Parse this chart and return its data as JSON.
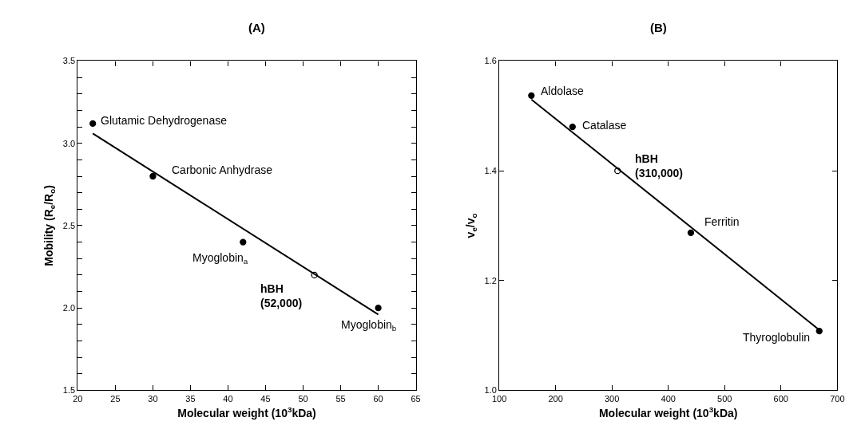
{
  "chart_data": [
    {
      "type": "scatter",
      "title": "(A)",
      "xlabel": "Molecular weight (10$^{3}$kDa)",
      "ylabel": "Mobility (R$_{e}$/R$_{o}$)",
      "xlim": [
        20,
        65
      ],
      "xticks": [
        20,
        25,
        30,
        35,
        40,
        45,
        50,
        55,
        60,
        65
      ],
      "ylim": [
        1.5,
        3.5
      ],
      "yticks": [
        1.5,
        {
          "value": 1.6,
          "label": null
        },
        {
          "value": 1.7,
          "label": null
        },
        {
          "value": 1.8,
          "label": null
        },
        {
          "value": 1.9,
          "label": null
        },
        {
          "value": 2,
          "label": "2.0"
        },
        {
          "value": 2.1,
          "label": null
        },
        {
          "value": 2.2,
          "label": null
        },
        {
          "value": 2.3,
          "label": null
        },
        {
          "value": 2.4,
          "label": null
        },
        2.5,
        {
          "value": 2.6,
          "label": null
        },
        {
          "value": 2.7,
          "label": null
        },
        {
          "value": 2.8,
          "label": null
        },
        {
          "value": 2.9,
          "label": null
        },
        {
          "value": 3,
          "label": "3.0"
        },
        {
          "value": 3.1,
          "label": null
        },
        {
          "value": 3.2,
          "label": null
        },
        {
          "value": 3.3,
          "label": null
        },
        {
          "value": 3.4,
          "label": null
        },
        3.5
      ],
      "series": [
        {
          "marker": "circle",
          "color": "#000000",
          "x": [
            22,
            30,
            42,
            60
          ],
          "values": [
            3.12,
            2.8,
            2.4,
            2.0
          ]
        },
        {
          "marker": "circle-open",
          "color": "#000000",
          "x": [
            51.5
          ],
          "values": [
            2.2
          ]
        },
        {
          "type": "line",
          "marker": "none",
          "color": "#000000",
          "x": [
            22,
            60
          ],
          "values": [
            3.06,
            1.96
          ]
        }
      ],
      "annotations": [
        {
          "text": "Glutamic Dehydrogenase",
          "x": 22,
          "y": 3.12
        },
        {
          "text": "Carbonic Anhydrase",
          "x": 30,
          "y": 2.8
        },
        {
          "text": "Myoglobin$_{a}$",
          "x": 42,
          "y": 2.4
        },
        {
          "text": "hBH\n(52,000)",
          "x": 51.5,
          "y": 2.2
        },
        {
          "text": "Myoglobin$_{b}$",
          "x": 60,
          "y": 2.0
        }
      ]
    },
    {
      "type": "scatter",
      "title": "(B)",
      "xlabel": "Molecular weight (10$^{3}$kDa)",
      "ylabel": "v$_{e}$/v$_{o}$",
      "xlim": [
        100,
        700
      ],
      "xticks": [
        100,
        200,
        300,
        400,
        500,
        600,
        700
      ],
      "ylim": [
        1.0,
        1.6
      ],
      "yticks": [
        {
          "value": 1,
          "label": "1.0"
        },
        1.2,
        1.4,
        1.6
      ],
      "series": [
        {
          "marker": "circle",
          "color": "#000000",
          "x": [
            157,
            230,
            440,
            668
          ],
          "values": [
            1.537,
            1.48,
            1.287,
            1.108
          ]
        },
        {
          "marker": "circle-open",
          "color": "#000000",
          "x": [
            310
          ],
          "values": [
            1.4
          ]
        },
        {
          "type": "line",
          "marker": "none",
          "color": "#000000",
          "x": [
            157,
            668
          ],
          "values": [
            1.53,
            1.11
          ]
        }
      ],
      "annotations": [
        {
          "text": "Aldolase",
          "x": 157,
          "y": 1.537
        },
        {
          "text": "Catalase",
          "x": 230,
          "y": 1.48
        },
        {
          "text": "hBH\n(310,000)",
          "x": 310,
          "y": 1.4
        },
        {
          "text": "Ferritin",
          "x": 440,
          "y": 1.287
        },
        {
          "text": "Thyroglobulin",
          "x": 668,
          "y": 1.108
        }
      ]
    }
  ]
}
